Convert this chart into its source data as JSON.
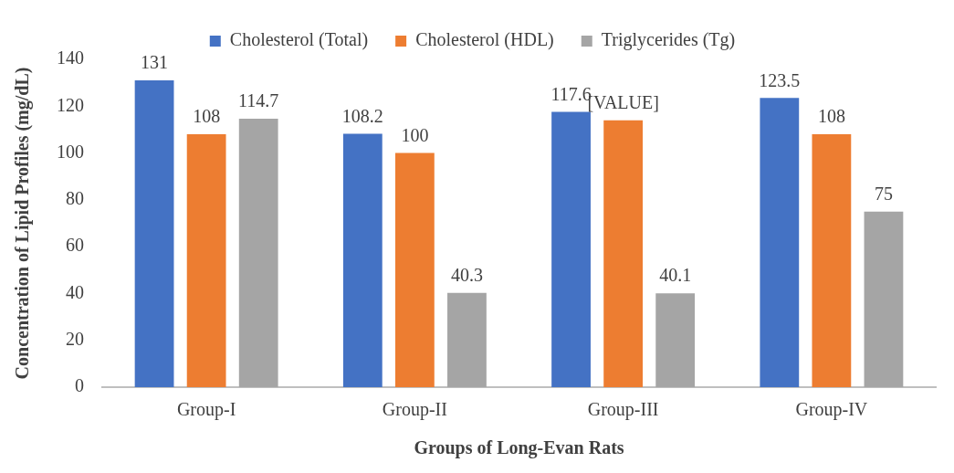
{
  "chart_data": {
    "type": "bar",
    "xlabel": "Groups of Long-Evan Rats",
    "ylabel": "Concentration of Lipid Profiles (mg/dL)",
    "categories": [
      "Group-I",
      "Group-II",
      "Group-III",
      "Group-IV"
    ],
    "series": [
      {
        "name": "Cholesterol (Total)",
        "color": "#4472c4",
        "values": [
          131,
          108.2,
          117.6,
          123.5
        ],
        "value_labels": [
          "131",
          "108.2",
          "117.6",
          "123.5"
        ]
      },
      {
        "name": "Cholesterol (HDL)",
        "color": "#ed7d31",
        "values": [
          108,
          100,
          114,
          108
        ],
        "value_labels": [
          "108",
          "100",
          "[VALUE]",
          "108"
        ]
      },
      {
        "name": "Triglycerides (Tg)",
        "color": "#a5a5a5",
        "values": [
          114.7,
          40.3,
          40.1,
          75
        ],
        "value_labels": [
          "114.7",
          "40.3",
          "40.1",
          "75"
        ]
      }
    ],
    "ylim": [
      0,
      140
    ],
    "yticks": [
      0,
      20,
      40,
      60,
      80,
      100,
      120,
      140
    ],
    "grid": false,
    "legend": "top"
  }
}
